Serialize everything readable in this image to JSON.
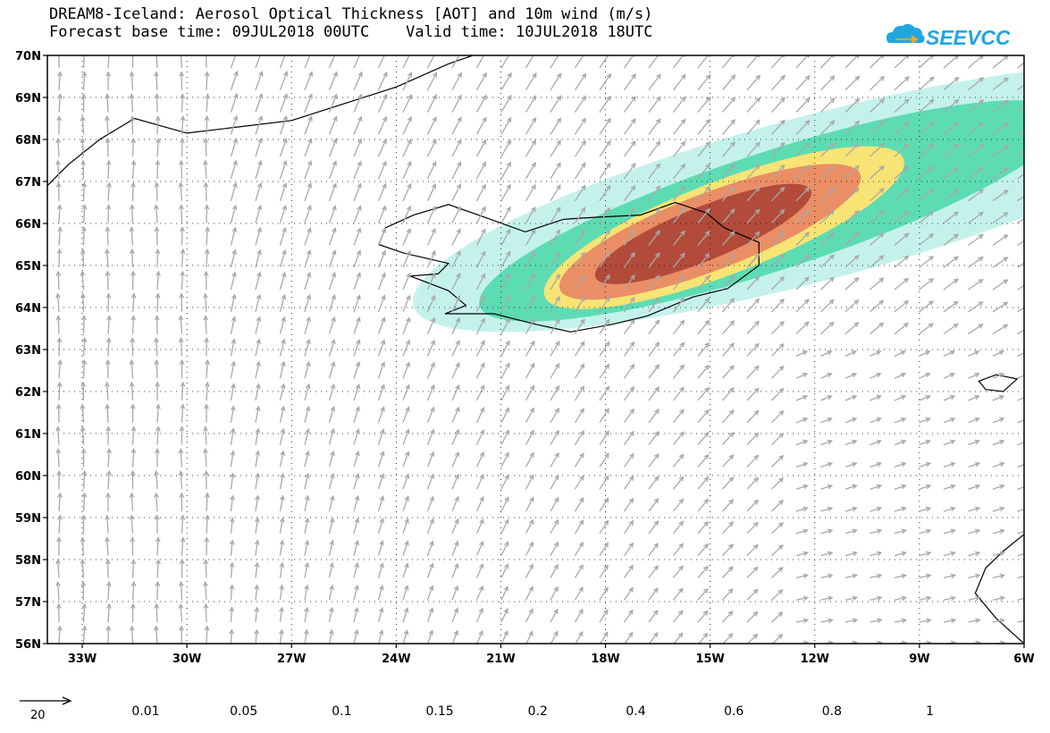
{
  "header": {
    "title_line1": "DREAM8-Iceland: Aerosol Optical Thickness [AOT] and 10m wind (m/s)",
    "title_line2": "Forecast base time: 09JUL2018 00UTC    Valid time: 10JUL2018 18UTC"
  },
  "logo": {
    "text": "SEEVCCC",
    "icon": "cloud-arrow-icon",
    "color": "#1ea7e1"
  },
  "map": {
    "lon_range": [
      -34.0,
      -6.0
    ],
    "lat_range": [
      56.0,
      70.0
    ],
    "lon_ticks": [
      "33W",
      "30W",
      "27W",
      "24W",
      "21W",
      "18W",
      "15W",
      "12W",
      "9W",
      "6W"
    ],
    "lat_ticks": [
      "70N",
      "69N",
      "68N",
      "67N",
      "66N",
      "65N",
      "64N",
      "63N",
      "62N",
      "61N",
      "60N",
      "59N",
      "58N",
      "57N",
      "56N"
    ],
    "grid": "dotted",
    "wind_vector_color": "#a8a8a8",
    "coastline_color": "#000000"
  },
  "legend": {
    "reference_vector_label": "20",
    "colorbar_labels": [
      "0.01",
      "0.05",
      "0.1",
      "0.15",
      "0.2",
      "0.4",
      "0.6",
      "0.8",
      "1"
    ],
    "colorbar_colors": [
      "#c4f2ea",
      "#5ddcb4",
      "#f7e474",
      "#ea8e66",
      "#b24b3a",
      "#850b2a",
      "#3a2210",
      "#8b6d9b",
      "#a6a6a6"
    ]
  }
}
